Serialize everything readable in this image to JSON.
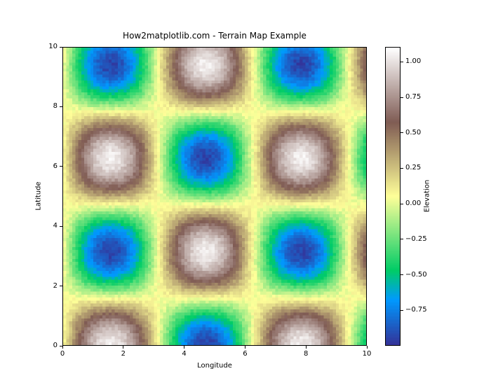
{
  "chart_data": {
    "type": "heatmap",
    "title": "How2matplotlib.com - Terrain Map Example",
    "xlabel": "Longitude",
    "ylabel": "Latitude",
    "x_range": [
      0,
      10
    ],
    "y_range": [
      0,
      10
    ],
    "grid": {
      "nx": 100,
      "ny": 100
    },
    "z_formula": "sin(x) * cos(y) + noise_amplitude * uniform_random",
    "noise_amplitude": 0.1,
    "noise_seed": 42,
    "vmin": -1.0,
    "vmax": 1.105,
    "grid_lines": "off",
    "x_ticks": {
      "values": [
        0,
        2,
        4,
        6,
        8,
        10
      ],
      "labels": [
        "0",
        "2",
        "4",
        "6",
        "8",
        "10"
      ]
    },
    "y_ticks": {
      "values": [
        0,
        2,
        4,
        6,
        8,
        10
      ],
      "labels": [
        "0",
        "2",
        "4",
        "6",
        "8",
        "10"
      ]
    },
    "colormap": {
      "name": "terrain",
      "stops": [
        {
          "pos": 0.0,
          "rgb": [
            51,
            51,
            153
          ]
        },
        {
          "pos": 0.15,
          "rgb": [
            0,
            153,
            255
          ]
        },
        {
          "pos": 0.25,
          "rgb": [
            0,
            204,
            102
          ]
        },
        {
          "pos": 0.5,
          "rgb": [
            255,
            255,
            153
          ]
        },
        {
          "pos": 0.75,
          "rgb": [
            128,
            92,
            84
          ]
        },
        {
          "pos": 1.0,
          "rgb": [
            255,
            255,
            255
          ]
        }
      ]
    },
    "colorbar": {
      "label": "Elevation",
      "position": "right",
      "tick_values": [
        1.0,
        0.75,
        0.5,
        0.25,
        0.0,
        -0.25,
        -0.5,
        -0.75
      ],
      "tick_labels": [
        "1.00",
        "0.75",
        "0.50",
        "0.25",
        "0.00",
        "−0.25",
        "−0.50",
        "−0.75"
      ]
    }
  }
}
